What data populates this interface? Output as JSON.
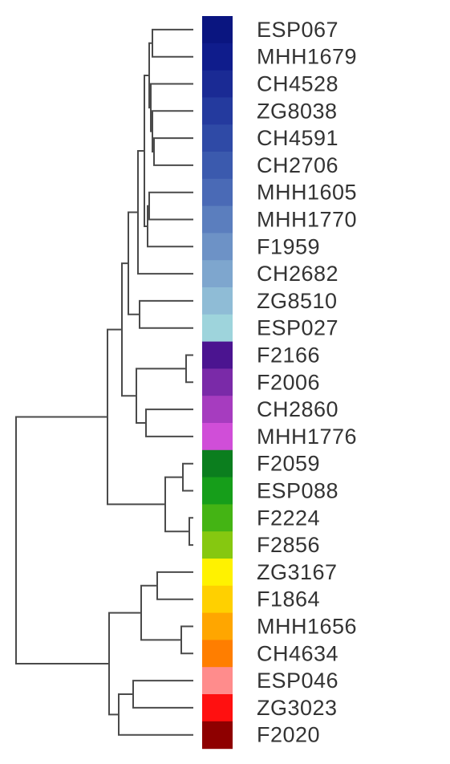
{
  "leaves": [
    {
      "label": "ESP067",
      "color": "#0a1580"
    },
    {
      "label": "MHH1679",
      "color": "#0f1c8c"
    },
    {
      "label": "CH4528",
      "color": "#1a2a94"
    },
    {
      "label": "ZG8038",
      "color": "#243a9e"
    },
    {
      "label": "CH4591",
      "color": "#2f4aa6"
    },
    {
      "label": "CH2706",
      "color": "#3b5aae"
    },
    {
      "label": "MHH1605",
      "color": "#4a6ab6"
    },
    {
      "label": "MHH1770",
      "color": "#5b7ebe"
    },
    {
      "label": "F1959",
      "color": "#6d92c6"
    },
    {
      "label": "CH2682",
      "color": "#7ea6ce"
    },
    {
      "label": "ZG8510",
      "color": "#8fbcd6"
    },
    {
      "label": "ESP027",
      "color": "#9ed4dc"
    },
    {
      "label": "F2166",
      "color": "#4b1490"
    },
    {
      "label": "F2006",
      "color": "#7a2aa8"
    },
    {
      "label": "CH2860",
      "color": "#a63cbf"
    },
    {
      "label": "MHH1776",
      "color": "#d04ed8"
    },
    {
      "label": "F2059",
      "color": "#0b7e1e"
    },
    {
      "label": "ESP088",
      "color": "#169e1a"
    },
    {
      "label": "F2224",
      "color": "#44b414"
    },
    {
      "label": "F2856",
      "color": "#86c810"
    },
    {
      "label": "ZG3167",
      "color": "#fff200"
    },
    {
      "label": "F1864",
      "color": "#ffd000"
    },
    {
      "label": "MHH1656",
      "color": "#ffa600"
    },
    {
      "label": "CH4634",
      "color": "#ff7e00"
    },
    {
      "label": "ESP046",
      "color": "#ff8c8c"
    },
    {
      "label": "ZG3023",
      "color": "#ff1010"
    },
    {
      "label": "F2020",
      "color": "#8e0000"
    }
  ]
}
